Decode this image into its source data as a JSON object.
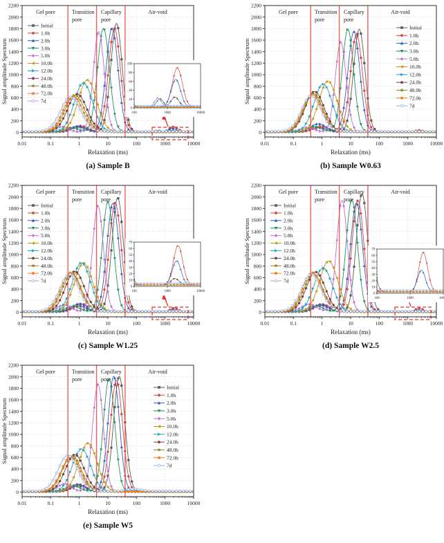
{
  "figure": {
    "ylabel": "Signal amplitude Spectrum",
    "xlabel": "Relaxation (ms)",
    "xtick_labels": [
      "0.01",
      "0.1",
      "1",
      "10",
      "100",
      "1000",
      "10000"
    ],
    "ytick_min": 0,
    "ytick_max": 2200,
    "ytick_step": 200,
    "ylim": [
      -80,
      2200
    ],
    "xlim_log": [
      -2,
      4
    ],
    "grid": "dashed",
    "region_labels": [
      "Gel pore",
      "Transition pore",
      "Capillary pore",
      "Air-void"
    ],
    "region_boundaries_ms": [
      0.4,
      4,
      40
    ],
    "legend_entries": [
      "Initial",
      "1.0h",
      "2.0h",
      "3.0h",
      "5.0h",
      "10.0h",
      "12.0h",
      "24.0h",
      "48.0h",
      "72.0h",
      "7d"
    ],
    "series_style": [
      {
        "label": "Initial",
        "color": "#5a5a5a",
        "marker": "square"
      },
      {
        "label": "1.0h",
        "color": "#dd4238",
        "marker": "circle"
      },
      {
        "label": "2.0h",
        "color": "#2f5cc4",
        "marker": "triangle-up"
      },
      {
        "label": "3.0h",
        "color": "#21915c",
        "marker": "triangle-down"
      },
      {
        "label": "5.0h",
        "color": "#bb6fd9",
        "marker": "diamond"
      },
      {
        "label": "10.0h",
        "color": "#c7930f",
        "marker": "triangle-left"
      },
      {
        "label": "12.0h",
        "color": "#1fa3c4",
        "marker": "triangle-right"
      },
      {
        "label": "24.0h",
        "color": "#7b4040",
        "marker": "hexagon"
      },
      {
        "label": "48.0h",
        "color": "#8f891e",
        "marker": "star"
      },
      {
        "label": "72.0h",
        "color": "#f57a1f",
        "marker": "pentagon"
      },
      {
        "label": "7d",
        "color": "#8badde",
        "marker": "circle-open"
      }
    ],
    "baselines": [
      8,
      8,
      8,
      8,
      8,
      8,
      8,
      8,
      8,
      8,
      16
    ],
    "colors": {
      "boundary_line": "#e9453b",
      "grid": "#dcdcdc",
      "frame": "#2a2a2a",
      "dashed_box": "#e8302a",
      "text": "#1a1a1a"
    }
  },
  "chart_data": [
    {
      "id": "a",
      "type": "line",
      "caption": "(a) Sample B",
      "legend": "left",
      "inset": {
        "y0": 92,
        "ymax": 100,
        "ystep": 20,
        "xticks": [
          "100",
          "1000",
          "10000"
        ]
      },
      "dashed_box": true,
      "series_peaks": [
        [
          [
            20,
            1880,
            0.2
          ],
          [
            0.9,
            85,
            0.26
          ],
          [
            1700,
            22,
            0.12
          ]
        ],
        [
          [
            17,
            1790,
            0.21
          ],
          [
            1.1,
            105,
            0.26
          ],
          [
            2000,
            88,
            0.15
          ]
        ],
        [
          [
            14,
            1800,
            0.21
          ],
          [
            0.9,
            100,
            0.26
          ],
          [
            1800,
            62,
            0.14
          ]
        ],
        [
          [
            7,
            1795,
            0.21
          ],
          [
            0.5,
            70,
            0.24
          ],
          [
            600,
            18,
            0.1
          ]
        ],
        [
          [
            4.8,
            1740,
            0.19
          ],
          [
            0.25,
            90,
            0.22
          ],
          [
            520,
            20,
            0.1
          ]
        ],
        [
          [
            1.9,
            900,
            0.32
          ]
        ],
        [
          [
            1.4,
            850,
            0.32
          ]
        ],
        [
          [
            0.85,
            655,
            0.34
          ]
        ],
        [
          [
            0.7,
            640,
            0.34
          ]
        ],
        [
          [
            0.6,
            620,
            0.34
          ]
        ],
        [
          [
            0.5,
            600,
            0.35
          ]
        ]
      ]
    },
    {
      "id": "b",
      "type": "line",
      "caption": "(b) Sample W0.63",
      "legend": "right",
      "inset": null,
      "dashed_box": false,
      "series_peaks": [
        [
          [
            20,
            1780,
            0.2
          ],
          [
            0.8,
            75,
            0.26
          ]
        ],
        [
          [
            16,
            1690,
            0.21
          ],
          [
            0.9,
            95,
            0.26
          ],
          [
            2500,
            30,
            0.13
          ]
        ],
        [
          [
            13,
            1740,
            0.21
          ],
          [
            0.75,
            140,
            0.27
          ]
        ],
        [
          [
            8,
            1780,
            0.2
          ],
          [
            0.55,
            85,
            0.25
          ]
        ],
        [
          [
            4.5,
            1560,
            0.19
          ],
          [
            0.3,
            75,
            0.24
          ]
        ],
        [
          [
            1.6,
            880,
            0.32
          ]
        ],
        [
          [
            1.1,
            830,
            0.32
          ]
        ],
        [
          [
            0.55,
            700,
            0.33
          ]
        ],
        [
          [
            0.5,
            665,
            0.33
          ]
        ],
        [
          [
            0.46,
            650,
            0.33
          ]
        ],
        [
          [
            0.42,
            620,
            0.34
          ]
        ]
      ]
    },
    {
      "id": "c",
      "type": "line",
      "caption": "(c) Sample W1.25",
      "legend": "left",
      "inset": {
        "y0": 90,
        "ymax": 70,
        "ystep": 10,
        "xticks": [
          "100",
          "1000",
          "10000"
        ]
      },
      "dashed_box": true,
      "series_peaks": [
        [
          [
            22,
            1975,
            0.2
          ],
          [
            0.95,
            100,
            0.26
          ],
          [
            1700,
            10,
            0.12
          ]
        ],
        [
          [
            18,
            1890,
            0.21
          ],
          [
            1.2,
            135,
            0.26
          ],
          [
            2100,
            62,
            0.14
          ]
        ],
        [
          [
            15,
            1880,
            0.21
          ],
          [
            1.0,
            140,
            0.26
          ],
          [
            1900,
            38,
            0.13
          ]
        ],
        [
          [
            10,
            1900,
            0.2
          ],
          [
            0.6,
            90,
            0.24
          ]
        ],
        [
          [
            4.5,
            1840,
            0.19
          ],
          [
            0.3,
            120,
            0.24
          ]
        ],
        [
          [
            1.4,
            845,
            0.32
          ]
        ],
        [
          [
            1.2,
            850,
            0.32
          ]
        ],
        [
          [
            0.7,
            700,
            0.33
          ]
        ],
        [
          [
            0.55,
            660,
            0.33
          ]
        ],
        [
          [
            0.5,
            680,
            0.33
          ]
        ],
        [
          [
            0.45,
            640,
            0.34
          ]
        ]
      ]
    },
    {
      "id": "d",
      "type": "line",
      "caption": "(d) Sample W2.5",
      "legend": "left",
      "inset": {
        "y0": 100,
        "ymax": 70,
        "ystep": 10,
        "xticks": [
          "100",
          "1000",
          "10000"
        ]
      },
      "dashed_box": true,
      "series_peaks": [
        [
          [
            25,
            2050,
            0.2
          ],
          [
            0.95,
            110,
            0.26
          ]
        ],
        [
          [
            18,
            1930,
            0.21
          ],
          [
            1.0,
            130,
            0.26
          ],
          [
            2500,
            62,
            0.13
          ]
        ],
        [
          [
            16,
            1890,
            0.21
          ],
          [
            0.9,
            130,
            0.26
          ],
          [
            2200,
            34,
            0.12
          ]
        ],
        [
          [
            11,
            1950,
            0.2
          ],
          [
            0.6,
            100,
            0.25
          ]
        ],
        [
          [
            5,
            1930,
            0.19
          ],
          [
            0.35,
            130,
            0.27
          ]
        ],
        [
          [
            1.7,
            880,
            0.32
          ]
        ],
        [
          [
            1.1,
            760,
            0.32
          ]
        ],
        [
          [
            0.6,
            690,
            0.33
          ]
        ],
        [
          [
            0.5,
            650,
            0.33
          ]
        ],
        [
          [
            0.46,
            680,
            0.33
          ]
        ],
        [
          [
            0.42,
            640,
            0.34
          ]
        ]
      ]
    },
    {
      "id": "e",
      "type": "line",
      "caption": "(e) Sample W5",
      "legend": "right",
      "inset": null,
      "dashed_box": false,
      "series_peaks": [
        [
          [
            25,
            2000,
            0.2
          ],
          [
            0.95,
            100,
            0.26
          ]
        ],
        [
          [
            20,
            1930,
            0.21
          ],
          [
            1.0,
            120,
            0.26
          ]
        ],
        [
          [
            16,
            2000,
            0.2
          ],
          [
            0.9,
            130,
            0.26
          ]
        ],
        [
          [
            11,
            1960,
            0.2
          ],
          [
            0.6,
            100,
            0.25
          ]
        ],
        [
          [
            4.5,
            1860,
            0.19
          ],
          [
            0.3,
            130,
            0.24
          ]
        ],
        [
          [
            2.0,
            840,
            0.32
          ]
        ],
        [
          [
            1.2,
            740,
            0.32
          ]
        ],
        [
          [
            0.7,
            640,
            0.33
          ]
        ],
        [
          [
            0.55,
            620,
            0.33
          ]
        ],
        [
          [
            0.5,
            600,
            0.33
          ]
        ],
        [
          [
            0.4,
            620,
            0.34
          ],
          [
            80,
            35,
            0.28
          ]
        ]
      ]
    }
  ]
}
